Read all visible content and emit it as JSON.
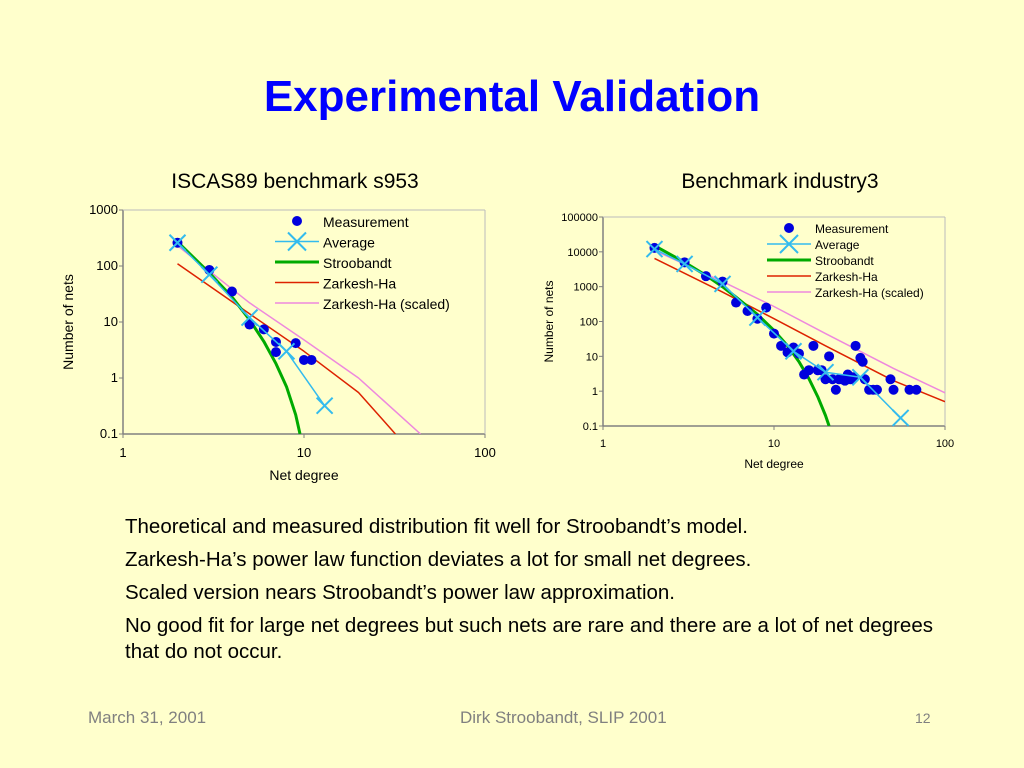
{
  "slide": {
    "title": "Experimental Validation",
    "bullets": [
      "Theoretical and measured distribution fit well for Stroobandt’s model.",
      "Zarkesh-Ha’s power law function deviates a lot for small net degrees.",
      "Scaled version nears Stroobandt’s power law approximation.",
      "No good fit for large net degrees but such nets are rare and there are a lot of net degrees that do not occur."
    ],
    "footer": {
      "date": "March 31, 2001",
      "author": "Dirk Stroobandt, SLIP 2001",
      "page": "12"
    },
    "colors": {
      "background": "#ffffcc",
      "title": "#0000ff",
      "measurement": "#0000dd",
      "average": "#33bbee",
      "stroobandt": "#00aa00",
      "zarkesh": "#dd2200",
      "zarkesh_scaled": "#ee88dd"
    }
  },
  "chart_data": [
    {
      "type": "scatter",
      "title": "ISCAS89 benchmark s953",
      "xlabel": "Net degree",
      "ylabel": "Number of nets",
      "xscale": "log",
      "yscale": "log",
      "xlim": [
        1,
        100
      ],
      "ylim": [
        0.1,
        1000
      ],
      "xticks": [
        "1",
        "10",
        "100"
      ],
      "yticks": [
        "0.1",
        "1",
        "10",
        "100",
        "1000"
      ],
      "legend_position": "top-right",
      "grid": false,
      "series": [
        {
          "name": "Measurement",
          "kind": "points",
          "x": [
            2,
            3,
            4,
            5,
            6,
            7,
            7,
            9,
            10,
            11
          ],
          "y": [
            260,
            85,
            35,
            9,
            7.4,
            4.4,
            2.9,
            4.2,
            2.1,
            2.1
          ]
        },
        {
          "name": "Average",
          "kind": "line-cross",
          "x": [
            2,
            3,
            5,
            8,
            13
          ],
          "y": [
            260,
            70,
            12,
            3,
            0.32
          ]
        },
        {
          "name": "Stroobandt",
          "kind": "line",
          "x": [
            2,
            3,
            4,
            5,
            6,
            7,
            8,
            9,
            9.5
          ],
          "y": [
            270,
            75,
            28,
            11,
            4.5,
            1.8,
            0.7,
            0.22,
            0.1
          ]
        },
        {
          "name": "Zarkesh-Ha",
          "kind": "line",
          "x": [
            2,
            5,
            10,
            20,
            32
          ],
          "y": [
            110,
            14,
            3.0,
            0.55,
            0.1
          ]
        },
        {
          "name": "Zarkesh-Ha (scaled)",
          "kind": "line",
          "x": [
            2,
            5,
            10,
            20,
            44
          ],
          "y": [
            230,
            22,
            4.8,
            1.0,
            0.1
          ]
        }
      ]
    },
    {
      "type": "scatter",
      "title": "Benchmark industry3",
      "xlabel": "Net degree",
      "ylabel": "Number of nets",
      "xscale": "log",
      "yscale": "log",
      "xlim": [
        1,
        100
      ],
      "ylim": [
        0.1,
        100000
      ],
      "xticks": [
        "1",
        "10",
        "100"
      ],
      "yticks": [
        "0.1",
        "1",
        "10",
        "100",
        "1000",
        "10000",
        "100000"
      ],
      "legend_position": "top-right",
      "grid": false,
      "series": [
        {
          "name": "Measurement",
          "kind": "points",
          "x": [
            2,
            3,
            4,
            5,
            6,
            7,
            8,
            9,
            10,
            11,
            12,
            13,
            14,
            15,
            16,
            17,
            18,
            19,
            20,
            21,
            22,
            23,
            24,
            25,
            26,
            27,
            28,
            29,
            30,
            32,
            33,
            34,
            36,
            38,
            40,
            48,
            50,
            62,
            68
          ],
          "y": [
            13000,
            5000,
            2000,
            1400,
            350,
            200,
            120,
            250,
            45,
            20,
            13,
            18,
            12,
            3,
            4,
            20,
            4,
            4,
            2.2,
            10,
            2.2,
            1.1,
            2.2,
            2.2,
            2,
            3,
            2.2,
            2.5,
            20,
            9,
            7,
            2.2,
            1.1,
            1.1,
            1.1,
            2.2,
            1.1,
            1.1,
            1.1
          ]
        },
        {
          "name": "Average",
          "kind": "line-cross",
          "x": [
            2,
            3,
            5,
            8,
            13,
            20,
            32,
            55
          ],
          "y": [
            12000,
            4500,
            1200,
            130,
            14,
            3.5,
            2.5,
            0.17
          ]
        },
        {
          "name": "Stroobandt",
          "kind": "line",
          "x": [
            2,
            3,
            4,
            5,
            6,
            8,
            10,
            12,
            14,
            16,
            18,
            20,
            21
          ],
          "y": [
            15000,
            5000,
            2100,
            1000,
            500,
            160,
            55,
            20,
            7,
            2.3,
            0.7,
            0.2,
            0.1
          ]
        },
        {
          "name": "Zarkesh-Ha",
          "kind": "line",
          "x": [
            2,
            5,
            10,
            20,
            50,
            100
          ],
          "y": [
            6500,
            700,
            120,
            20,
            2.0,
            0.5
          ]
        },
        {
          "name": "Zarkesh-Ha (scaled)",
          "kind": "line",
          "x": [
            2,
            5,
            10,
            20,
            50,
            100
          ],
          "y": [
            11000,
            1400,
            270,
            45,
            4.5,
            0.9
          ]
        }
      ]
    }
  ]
}
